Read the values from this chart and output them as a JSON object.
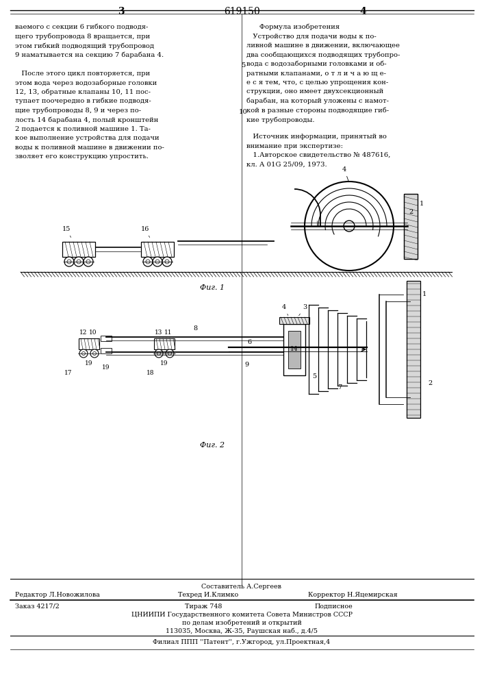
{
  "page_width": 7.07,
  "page_height": 10.0,
  "bg_color": "#ffffff",
  "text_color": "#000000",
  "page_num_left": "3",
  "page_num_center": "619150",
  "page_num_right": "4",
  "left_col_lines": [
    "ваемого с секции 6 гибкого подводя-",
    "щего трубопровода 8 вращается, при",
    "этом гибкий подводящий трубопровод",
    "9 наматывается на секцию 7 барабана 4.",
    "",
    "   После этого цикл повторяется, при",
    "этом вода через водозаборные головки",
    "12, 13, обратные клапаны 10, 11 пос-",
    "тупает поочередно в гибкие подводя-",
    "щие трубопроводы 8, 9 и через по-",
    "лость 14 барабана 4, полый кронштейн",
    "2 подается к поливной машине 1. Та-",
    "кое выполнение устройства для подачи",
    "воды к поливной машине в движении по-",
    "зволяет его конструкцию упростить."
  ],
  "right_col_lines": [
    "      Формула изобретения",
    "   Устройство для подачи воды к по-",
    "ливной машине в движении, включающее",
    "два сообщающихся подводящих трубопро-",
    "вода с водозаборными головками и об-",
    "ратными клапанами, о т л и ч а ю щ е-",
    "е с я тем, что, с целью упрощения кон-",
    "струкции, оно имеет двухсекционный",
    "барабан, на который уложены с намот-",
    "кой в разные стороны подводящие гиб-",
    "кие трубопроводы."
  ],
  "source_lines": [
    "   Источник информации, принятый во",
    "внимание при экспертизе:",
    "   1.Авторское свидетельство № 487616,",
    "кл. А 01G 25/09, 1973."
  ],
  "lnum5": "5",
  "lnum10": "10",
  "fig1_caption": "Фиг. 1",
  "fig2_caption": "Фиг. 2",
  "editor": "Редактор Л.Новожилова",
  "composer": "Составитель А.Сергеев",
  "techred": "Техред И.Климко",
  "corrector": "Корректор Н.Яцемирская",
  "order": "Заказ 4217/2",
  "tirazh": "Тираж 748",
  "podpisnoe": "Подписное",
  "cniipи": "ЦНИИПИ Государственного комитета Совета Министров СССР",
  "dela": "по делам изобретений и открытий",
  "addr": "113035, Москва, Ж-35, Раушская наб., д.4/5",
  "filial": "Филиал ППП ''Патент'', г.Ужгород, ул.Проектная,4"
}
